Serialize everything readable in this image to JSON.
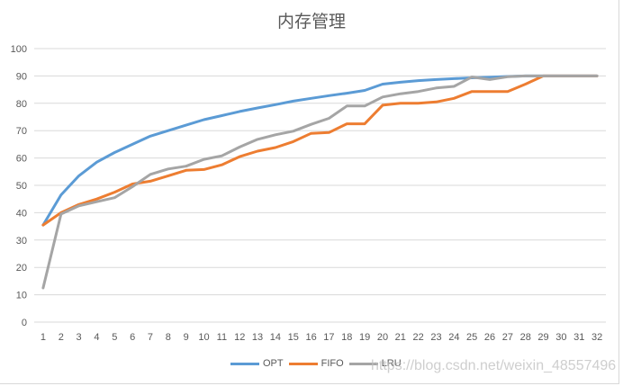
{
  "chart_data": {
    "type": "line",
    "title": "内存管理",
    "xlabel": "",
    "ylabel": "",
    "ylim": [
      0,
      100
    ],
    "yticks": [
      0,
      10,
      20,
      30,
      40,
      50,
      60,
      70,
      80,
      90,
      100
    ],
    "grid": true,
    "legend_position": "bottom",
    "categories": [
      1,
      2,
      3,
      4,
      5,
      6,
      7,
      8,
      9,
      10,
      11,
      12,
      13,
      14,
      15,
      16,
      17,
      18,
      19,
      20,
      21,
      22,
      23,
      24,
      25,
      26,
      27,
      28,
      29,
      30,
      31,
      32
    ],
    "series": [
      {
        "name": "OPT",
        "color": "#5b9bd5",
        "values": [
          35.5,
          46.5,
          53.5,
          58.5,
          62,
          65,
          68,
          70,
          72,
          74,
          75.5,
          77,
          78.3,
          79.5,
          80.8,
          81.8,
          82.8,
          83.7,
          84.7,
          87,
          87.7,
          88.3,
          88.7,
          89,
          89.3,
          89.5,
          89.8,
          90,
          90,
          90,
          90,
          90
        ]
      },
      {
        "name": "FIFO",
        "color": "#ed7d31",
        "values": [
          35.5,
          40,
          43,
          45,
          47.5,
          50.5,
          51.5,
          53.5,
          55.5,
          55.8,
          57.5,
          60.5,
          62.5,
          63.8,
          66,
          69,
          69.3,
          72.5,
          72.5,
          79.3,
          80,
          80,
          80.5,
          81.8,
          84.3,
          84.3,
          84.3,
          87,
          90,
          90,
          90,
          90
        ]
      },
      {
        "name": "LRU",
        "color": "#a5a5a5",
        "values": [
          12.5,
          39.5,
          42.5,
          44,
          45.5,
          49.5,
          54,
          56,
          57,
          59.5,
          60.8,
          64,
          66.8,
          68.5,
          69.8,
          72.3,
          74.5,
          79,
          79,
          82.3,
          83.5,
          84.3,
          85.6,
          86.2,
          89.6,
          88.7,
          89.7,
          90,
          90,
          90,
          90,
          90
        ]
      }
    ]
  },
  "watermark": "https://blog.csdn.net/weixin_48557496"
}
